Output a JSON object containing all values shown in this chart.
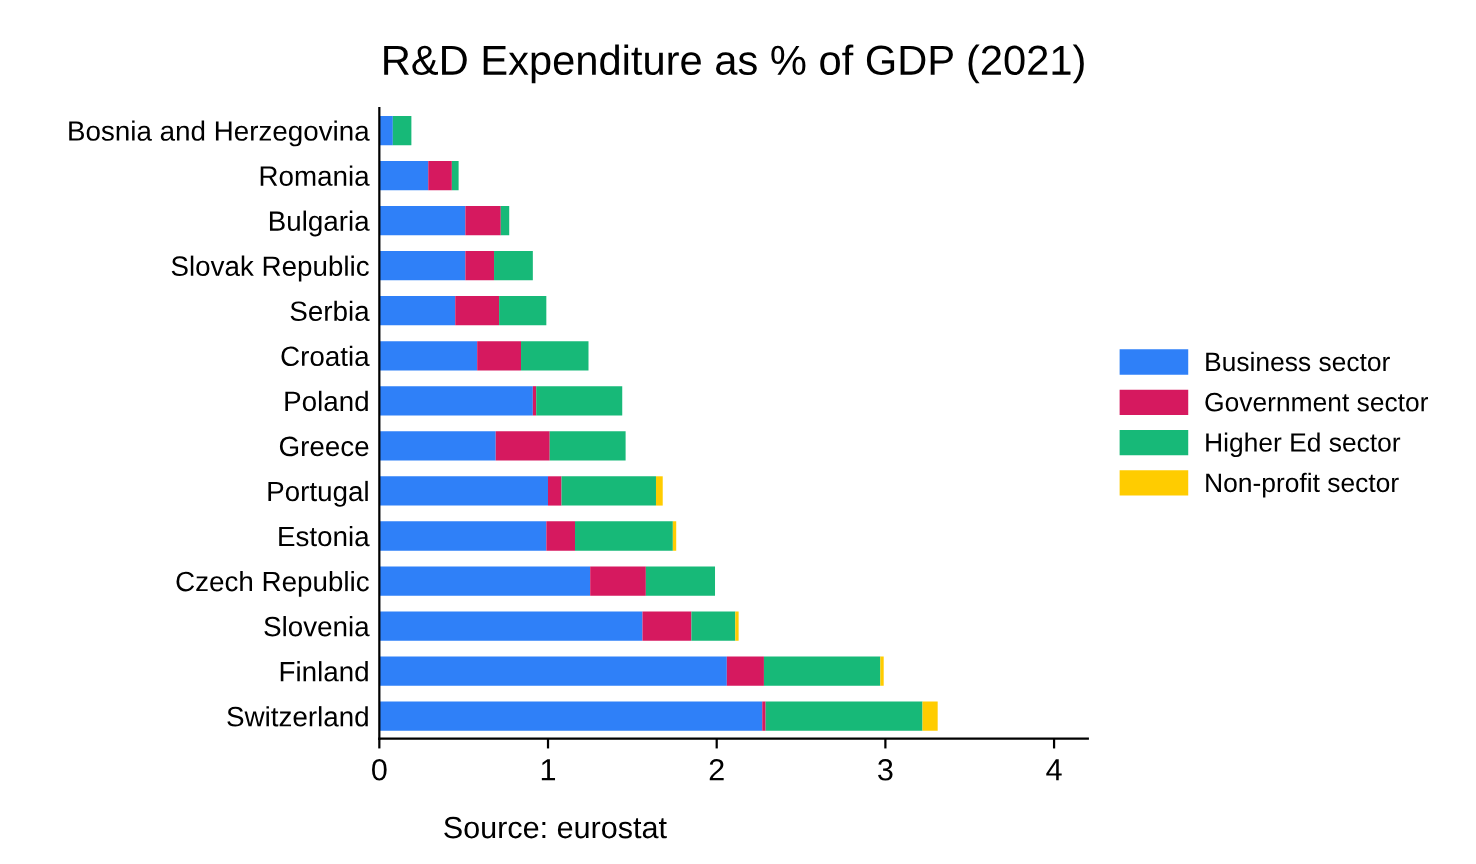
{
  "chart_data": {
    "type": "bar",
    "orientation": "horizontal",
    "stacked": true,
    "title": "R&D Expenditure as % of GDP (2021)",
    "annotations": [
      "Source: eurostat"
    ],
    "categories": [
      "Bosnia and Herzegovina",
      "Romania",
      "Bulgaria",
      "Slovak Republic",
      "Serbia",
      "Croatia",
      "Poland",
      "Greece",
      "Portugal",
      "Estonia",
      "Czech Republic",
      "Slovenia",
      "Finland",
      "Switzerland"
    ],
    "series": [
      {
        "name": "Business sector",
        "color": "#2f80f8",
        "values": [
          0.08,
          0.29,
          0.51,
          0.51,
          0.45,
          0.58,
          0.91,
          0.69,
          1.0,
          0.99,
          1.25,
          1.56,
          2.06,
          2.27
        ]
      },
      {
        "name": "Government sector",
        "color": "#d6195f",
        "values": [
          0.0,
          0.14,
          0.21,
          0.17,
          0.26,
          0.26,
          0.02,
          0.32,
          0.08,
          0.17,
          0.33,
          0.29,
          0.22,
          0.02
        ]
      },
      {
        "name": "Higher Ed sector",
        "color": "#17b978",
        "values": [
          0.11,
          0.04,
          0.05,
          0.23,
          0.28,
          0.4,
          0.51,
          0.45,
          0.56,
          0.58,
          0.41,
          0.26,
          0.69,
          0.93
        ]
      },
      {
        "name": "Non-profit sector",
        "color": "#ffcc00",
        "values": [
          0.0,
          0.0,
          0.0,
          0.0,
          0.0,
          0.0,
          0.0,
          0.0,
          0.04,
          0.02,
          0.0,
          0.02,
          0.02,
          0.09
        ]
      }
    ],
    "xlim": [
      0,
      4.2
    ],
    "xticks": [
      0,
      1,
      2,
      3,
      4
    ],
    "grid": false,
    "legend": "right"
  }
}
